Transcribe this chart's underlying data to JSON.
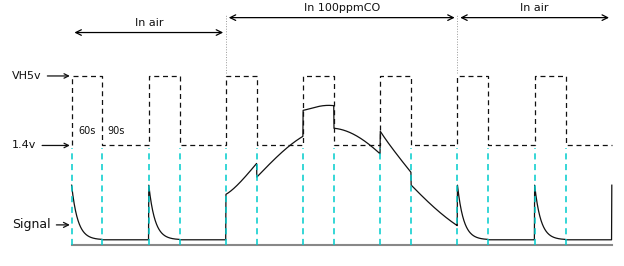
{
  "bg_color": "#ffffff",
  "label_VH5v": "VH5v",
  "label_14v": "1.4v",
  "label_signal": "Signal",
  "label_in_air1": "In air",
  "label_in_air2": "In air",
  "label_co": "In 100ppmCO",
  "label_60s": "60s",
  "label_90s": "90s",
  "high_duration": 60,
  "low_duration": 90,
  "num_cycles": 7,
  "heater_high": 0.72,
  "heater_low": 0.44,
  "signal_base": 0.06,
  "signal_peak_air": 0.22,
  "signal_peak_co": 0.6,
  "cyan_color": "#00cccc",
  "dashed_color": "#111111",
  "signal_color": "#111111",
  "arrow_color": "#111111",
  "text_color": "#111111",
  "figsize": [
    6.24,
    2.66
  ],
  "dpi": 100
}
